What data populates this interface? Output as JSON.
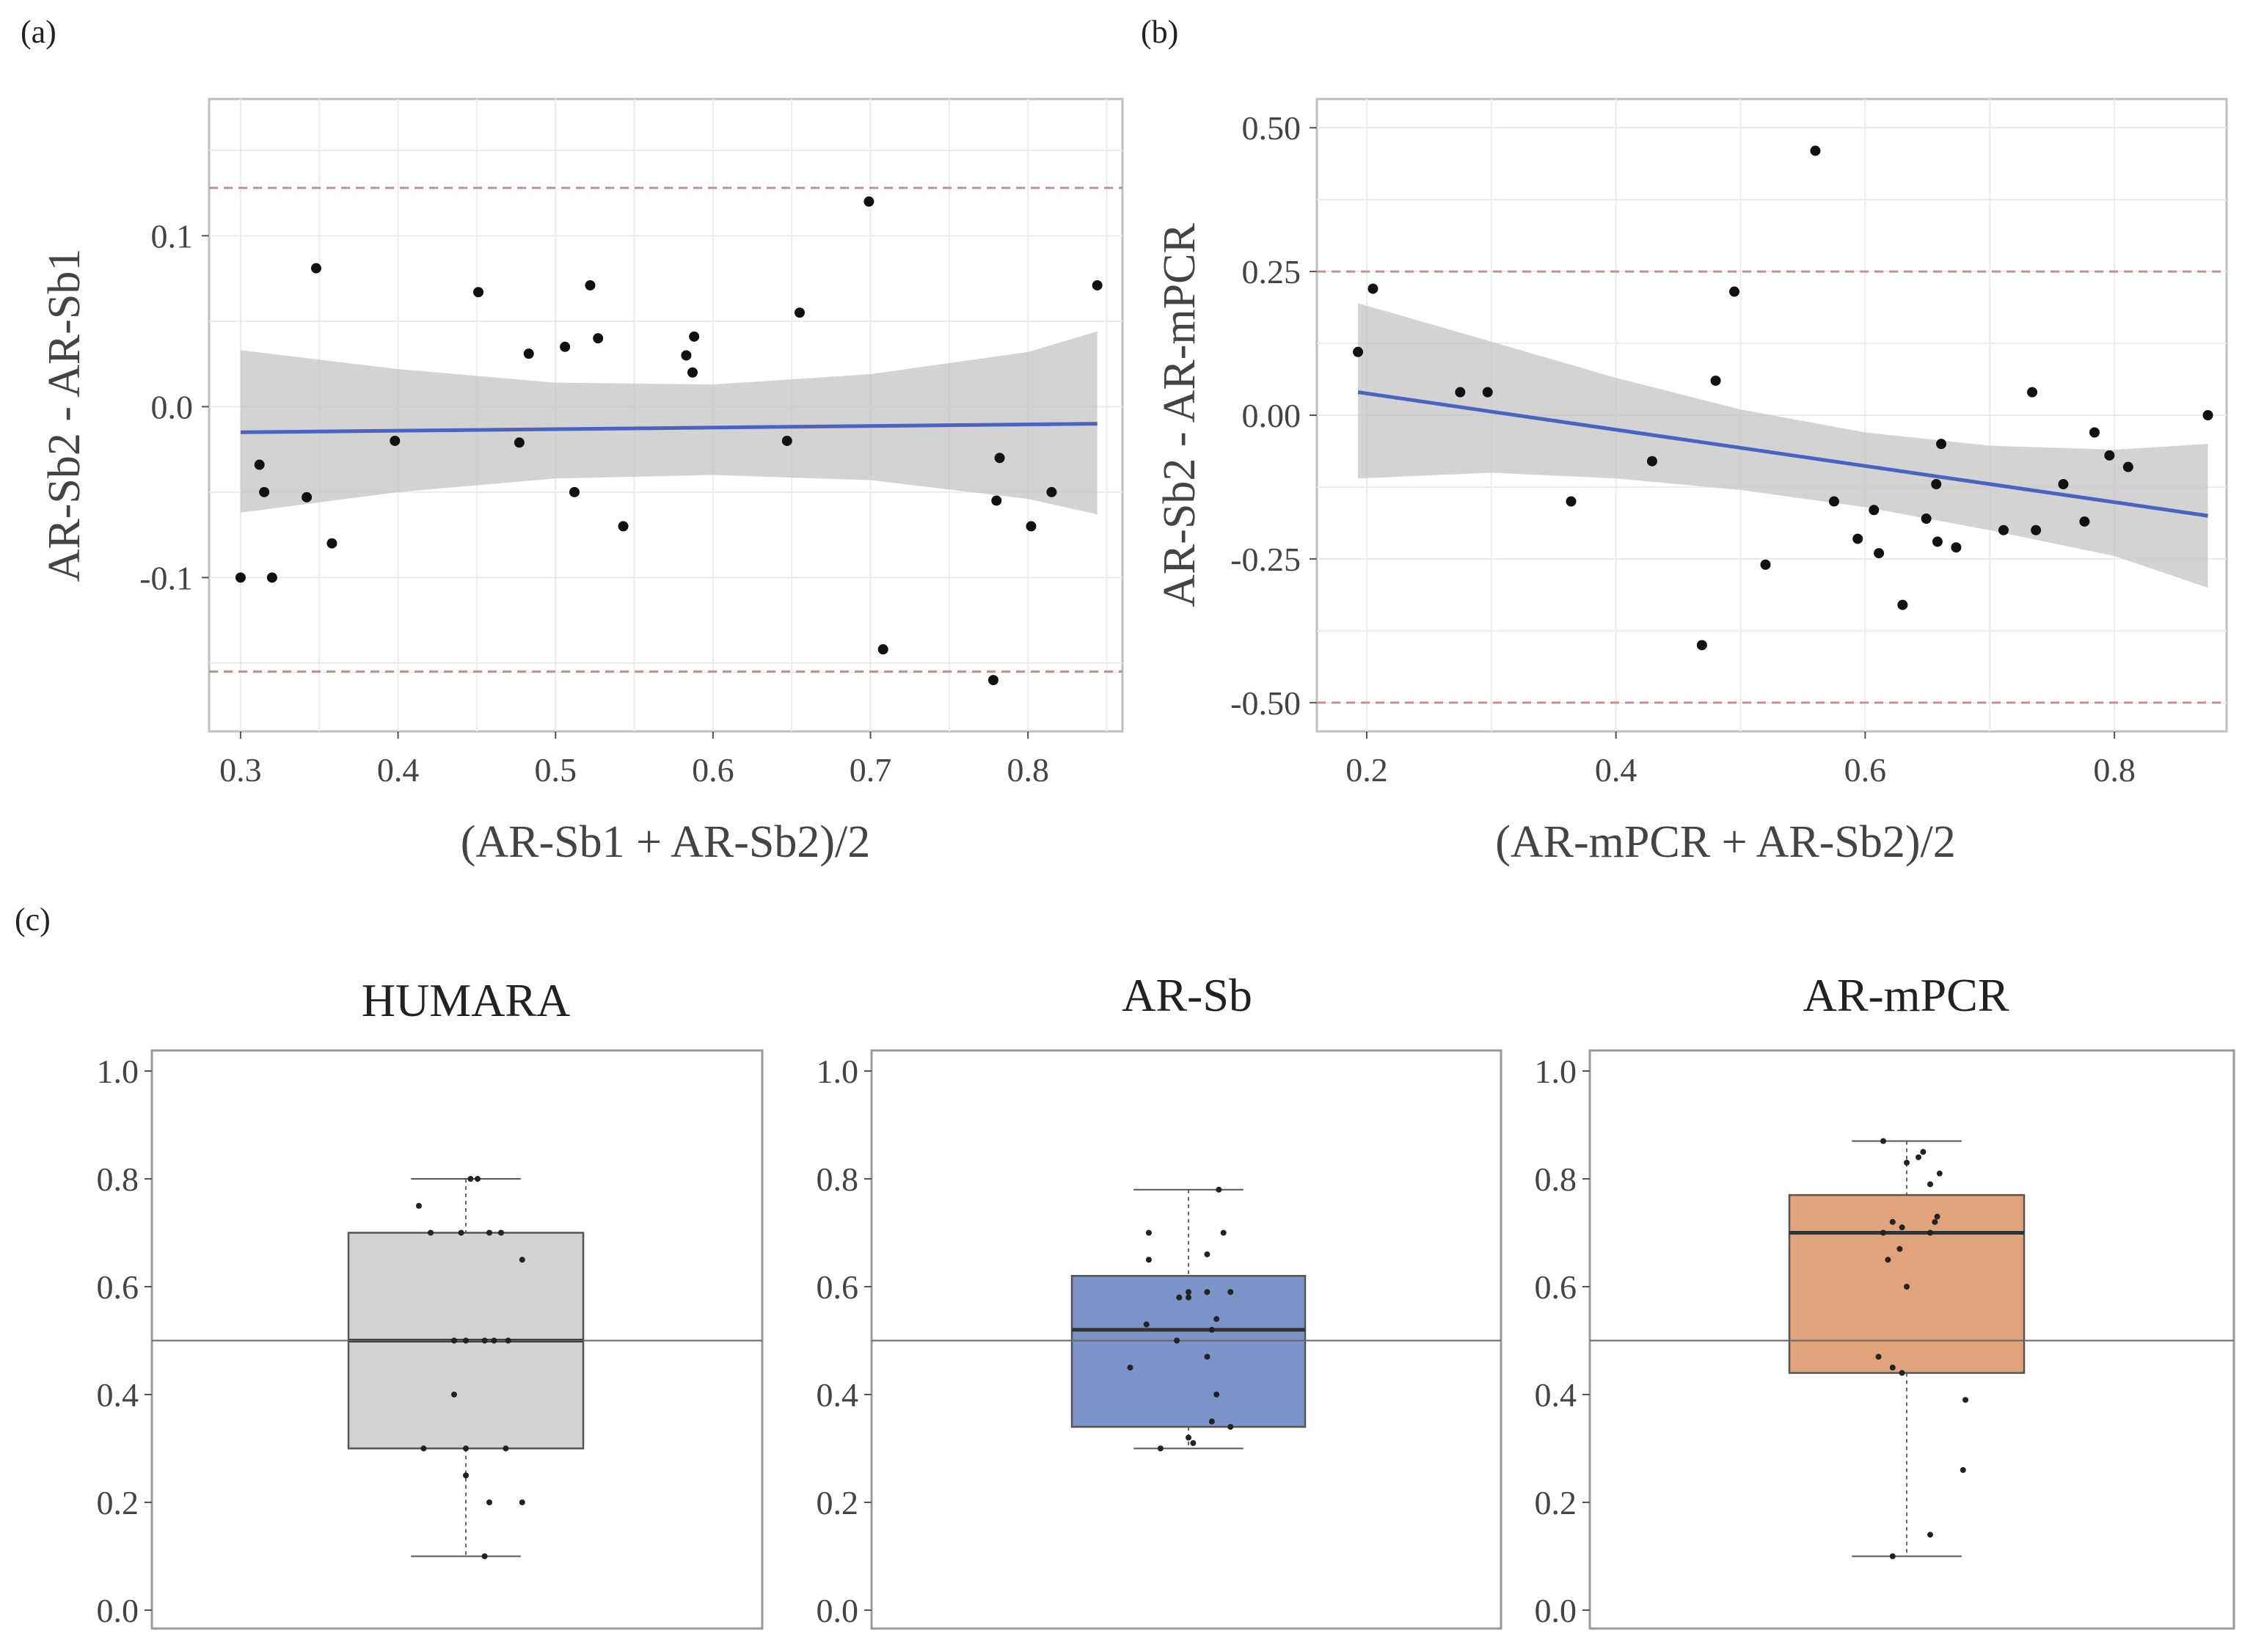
{
  "chart_data": [
    {
      "panel": "(a)",
      "type": "scatter",
      "title": "",
      "xlabel": "(AR-Sb1 + AR-Sb2)/2",
      "ylabel": "AR-Sb2 - AR-Sb1",
      "xlim": [
        0.28,
        0.86
      ],
      "ylim": [
        -0.19,
        0.18
      ],
      "xticks": [
        0.3,
        0.4,
        0.5,
        0.6,
        0.7,
        0.8
      ],
      "xtick_labels": [
        "0.3",
        "0.4",
        "0.5",
        "0.6",
        "0.7",
        "0.8"
      ],
      "yticks": [
        -0.1,
        0.0,
        0.1
      ],
      "ytick_labels": [
        "-0.1",
        "0.0",
        "0.1"
      ],
      "grid": true,
      "points": [
        [
          0.3,
          -0.1
        ],
        [
          0.312,
          -0.034
        ],
        [
          0.315,
          -0.05
        ],
        [
          0.32,
          -0.1
        ],
        [
          0.342,
          -0.053
        ],
        [
          0.348,
          0.081
        ],
        [
          0.358,
          -0.08
        ],
        [
          0.398,
          -0.02
        ],
        [
          0.451,
          0.067
        ],
        [
          0.477,
          -0.021
        ],
        [
          0.483,
          0.031
        ],
        [
          0.506,
          0.035
        ],
        [
          0.512,
          -0.05
        ],
        [
          0.522,
          0.071
        ],
        [
          0.527,
          0.04
        ],
        [
          0.543,
          -0.07
        ],
        [
          0.583,
          0.03
        ],
        [
          0.587,
          0.02
        ],
        [
          0.588,
          0.041
        ],
        [
          0.647,
          -0.02
        ],
        [
          0.655,
          0.055
        ],
        [
          0.699,
          0.12
        ],
        [
          0.708,
          -0.142
        ],
        [
          0.778,
          -0.16
        ],
        [
          0.78,
          -0.055
        ],
        [
          0.782,
          -0.03
        ],
        [
          0.802,
          -0.07
        ],
        [
          0.815,
          -0.05
        ],
        [
          0.844,
          0.071
        ]
      ],
      "fit": {
        "x": [
          0.3,
          0.844
        ],
        "y": [
          -0.015,
          -0.01
        ]
      },
      "ci": {
        "x": [
          0.3,
          0.4,
          0.5,
          0.6,
          0.7,
          0.8,
          0.844
        ],
        "upper": [
          0.033,
          0.022,
          0.014,
          0.013,
          0.019,
          0.032,
          0.044
        ],
        "lower": [
          -0.062,
          -0.05,
          -0.042,
          -0.04,
          -0.043,
          -0.054,
          -0.063
        ]
      },
      "limits": [
        0.128,
        -0.155
      ]
    },
    {
      "panel": "(b)",
      "type": "scatter",
      "title": "",
      "xlabel": "(AR-mPCR + AR-Sb2)/2",
      "ylabel": "AR-Sb2 - AR-mPCR",
      "xlim": [
        0.16,
        0.89
      ],
      "ylim": [
        -0.55,
        0.55
      ],
      "xticks": [
        0.2,
        0.4,
        0.6,
        0.8
      ],
      "xtick_labels": [
        "0.2",
        "0.4",
        "0.6",
        "0.8"
      ],
      "yticks": [
        -0.5,
        -0.25,
        0.0,
        0.25,
        0.5
      ],
      "ytick_labels": [
        "-0.50",
        "-0.25",
        "0.00",
        "0.25",
        "0.50"
      ],
      "grid": true,
      "points": [
        [
          0.193,
          0.11
        ],
        [
          0.205,
          0.22
        ],
        [
          0.275,
          0.04
        ],
        [
          0.297,
          0.04
        ],
        [
          0.364,
          -0.15
        ],
        [
          0.429,
          -0.08
        ],
        [
          0.469,
          -0.4
        ],
        [
          0.48,
          0.06
        ],
        [
          0.495,
          0.215
        ],
        [
          0.52,
          -0.26
        ],
        [
          0.56,
          0.46
        ],
        [
          0.575,
          -0.15
        ],
        [
          0.594,
          -0.215
        ],
        [
          0.607,
          -0.165
        ],
        [
          0.611,
          -0.24
        ],
        [
          0.63,
          -0.33
        ],
        [
          0.649,
          -0.18
        ],
        [
          0.657,
          -0.12
        ],
        [
          0.661,
          -0.05
        ],
        [
          0.658,
          -0.22
        ],
        [
          0.673,
          -0.23
        ],
        [
          0.711,
          -0.2
        ],
        [
          0.734,
          0.04
        ],
        [
          0.737,
          -0.2
        ],
        [
          0.759,
          -0.12
        ],
        [
          0.776,
          -0.185
        ],
        [
          0.784,
          -0.03
        ],
        [
          0.796,
          -0.07
        ],
        [
          0.811,
          -0.09
        ],
        [
          0.875,
          0.0
        ]
      ],
      "fit": {
        "x": [
          0.193,
          0.875
        ],
        "y": [
          0.04,
          -0.175
        ]
      },
      "ci": {
        "x": [
          0.193,
          0.3,
          0.4,
          0.5,
          0.6,
          0.7,
          0.8,
          0.875
        ],
        "upper": [
          0.195,
          0.128,
          0.065,
          0.01,
          -0.03,
          -0.053,
          -0.06,
          -0.05
        ],
        "lower": [
          -0.11,
          -0.1,
          -0.11,
          -0.13,
          -0.16,
          -0.2,
          -0.245,
          -0.3
        ]
      },
      "limits": [
        0.25,
        -0.5
      ]
    },
    {
      "panel": "(c)",
      "type": "box",
      "ylim": [
        0,
        1
      ],
      "yticks": [
        0.0,
        0.2,
        0.4,
        0.6,
        0.8,
        1.0
      ],
      "ytick_labels": [
        "0.0",
        "0.2",
        "0.4",
        "0.6",
        "0.8",
        "1.0"
      ],
      "reference_line": 0.5,
      "groups": [
        {
          "name": "HUMARA",
          "color": "#d3d3d3",
          "q1": 0.3,
          "median": 0.5,
          "q3": 0.7,
          "whisker_low": 0.1,
          "whisker_high": 0.8,
          "points": [
            [
              -0.2,
              0.75
            ],
            [
              -0.15,
              0.7
            ],
            [
              -0.02,
              0.7
            ],
            [
              0.1,
              0.7
            ],
            [
              0.15,
              0.7
            ],
            [
              0.24,
              0.65
            ],
            [
              0.02,
              0.8
            ],
            [
              0.05,
              0.8
            ],
            [
              -0.05,
              0.5
            ],
            [
              0.0,
              0.5
            ],
            [
              0.08,
              0.5
            ],
            [
              0.12,
              0.5
            ],
            [
              0.18,
              0.5
            ],
            [
              -0.05,
              0.4
            ],
            [
              0.0,
              0.3
            ],
            [
              -0.18,
              0.3
            ],
            [
              0.17,
              0.3
            ],
            [
              0.0,
              0.25
            ],
            [
              0.1,
              0.2
            ],
            [
              0.24,
              0.2
            ],
            [
              0.08,
              0.1
            ]
          ]
        },
        {
          "name": "AR-Sb",
          "color": "#7b93c8",
          "q1": 0.34,
          "median": 0.52,
          "q3": 0.62,
          "whisker_low": 0.3,
          "whisker_high": 0.78,
          "points": [
            [
              0.13,
              0.78
            ],
            [
              -0.17,
              0.7
            ],
            [
              0.15,
              0.7
            ],
            [
              0.08,
              0.66
            ],
            [
              -0.17,
              0.65
            ],
            [
              0.0,
              0.59
            ],
            [
              0.08,
              0.59
            ],
            [
              0.18,
              0.59
            ],
            [
              -0.04,
              0.58
            ],
            [
              0.0,
              0.58
            ],
            [
              0.12,
              0.54
            ],
            [
              -0.18,
              0.53
            ],
            [
              0.1,
              0.52
            ],
            [
              -0.05,
              0.5
            ],
            [
              0.08,
              0.47
            ],
            [
              -0.25,
              0.45
            ],
            [
              0.12,
              0.4
            ],
            [
              0.1,
              0.35
            ],
            [
              0.18,
              0.34
            ],
            [
              0.0,
              0.32
            ],
            [
              0.02,
              0.31
            ],
            [
              -0.12,
              0.3
            ]
          ]
        },
        {
          "name": "AR-mPCR",
          "color": "#e0a37c",
          "q1": 0.44,
          "median": 0.7,
          "q3": 0.77,
          "whisker_low": 0.1,
          "whisker_high": 0.87,
          "points": [
            [
              -0.1,
              0.87
            ],
            [
              0.05,
              0.84
            ],
            [
              0.07,
              0.85
            ],
            [
              0.0,
              0.83
            ],
            [
              0.1,
              0.79
            ],
            [
              0.14,
              0.81
            ],
            [
              0.13,
              0.73
            ],
            [
              0.12,
              0.72
            ],
            [
              -0.06,
              0.72
            ],
            [
              -0.02,
              0.71
            ],
            [
              -0.1,
              0.7
            ],
            [
              0.1,
              0.7
            ],
            [
              -0.03,
              0.67
            ],
            [
              -0.08,
              0.65
            ],
            [
              0.0,
              0.6
            ],
            [
              -0.12,
              0.47
            ],
            [
              -0.06,
              0.45
            ],
            [
              -0.02,
              0.44
            ],
            [
              0.25,
              0.39
            ],
            [
              0.24,
              0.26
            ],
            [
              0.1,
              0.14
            ],
            [
              -0.06,
              0.1
            ]
          ]
        }
      ]
    }
  ]
}
